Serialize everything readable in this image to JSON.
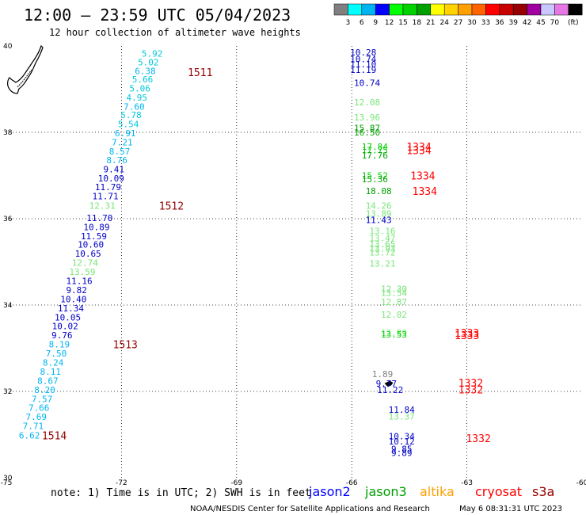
{
  "header": {
    "title": "12:00 — 23:59 UTC 05/04/2023",
    "subtitle": "12 hour collection of altimeter wave heights"
  },
  "colorbar": {
    "unit": "(ft)",
    "labels": [
      "3",
      "6",
      "9",
      "12",
      "15",
      "18",
      "21",
      "24",
      "27",
      "30",
      "33",
      "36",
      "39",
      "42",
      "45",
      "70"
    ],
    "colors": [
      "#7f7f7f",
      "#00ffff",
      "#00b4f0",
      "#0000ff",
      "#00ff00",
      "#00d200",
      "#00a000",
      "#ffff00",
      "#ffd200",
      "#ffa000",
      "#ff6400",
      "#ff0000",
      "#c80000",
      "#960000",
      "#a000a0",
      "#c8c8ff",
      "#e678e6",
      "#000000"
    ]
  },
  "footer": {
    "note": "note: 1) Time is in UTC; 2) SWH is in feet",
    "credit": "NOAA/NESDIS Center for Satellite Applications and Research",
    "timestamp": "May  6 08:31:31 UTC 2023"
  },
  "legend": [
    {
      "name": "jason2",
      "color": "#0000ff"
    },
    {
      "name": "jason3",
      "color": "#00a000"
    },
    {
      "name": "altika",
      "color": "#ffa000"
    },
    {
      "name": "cryosat",
      "color": "#ff0000"
    },
    {
      "name": "s3a",
      "color": "#960000"
    }
  ],
  "chart_data": {
    "type": "scatter",
    "xlim": [
      -75,
      -60
    ],
    "ylim": [
      30,
      40
    ],
    "xticks": [
      "-75",
      "-72",
      "-69",
      "-66",
      "-63",
      "-60"
    ],
    "yticks": [
      "30",
      "32",
      "34",
      "36",
      "38",
      "40"
    ],
    "grid": true,
    "points": [
      {
        "lon": -71.2,
        "lat": 39.83,
        "label": "5.92",
        "color": "#00c8dc"
      },
      {
        "lon": -71.3,
        "lat": 39.62,
        "label": "5.02",
        "color": "#00c8dc"
      },
      {
        "lon": -71.38,
        "lat": 39.42,
        "label": "6.38",
        "color": "#00b4f0"
      },
      {
        "lon": -71.45,
        "lat": 39.23,
        "label": "5.66",
        "color": "#00c8dc"
      },
      {
        "lon": -71.52,
        "lat": 39.02,
        "label": "5.06",
        "color": "#00c8dc"
      },
      {
        "lon": -71.6,
        "lat": 38.81,
        "label": "4.95",
        "color": "#00c8dc"
      },
      {
        "lon": -71.67,
        "lat": 38.6,
        "label": "7.60",
        "color": "#00b4f0"
      },
      {
        "lon": -71.75,
        "lat": 38.4,
        "label": "5.78",
        "color": "#00c8dc"
      },
      {
        "lon": -71.82,
        "lat": 38.19,
        "label": "5.54",
        "color": "#00c8dc"
      },
      {
        "lon": -71.9,
        "lat": 37.98,
        "label": "6.91",
        "color": "#00b4f0"
      },
      {
        "lon": -71.98,
        "lat": 37.77,
        "label": "7.21",
        "color": "#00b4f0"
      },
      {
        "lon": -72.05,
        "lat": 37.56,
        "label": "8.57",
        "color": "#00b4f0"
      },
      {
        "lon": -72.12,
        "lat": 37.36,
        "label": "8.76",
        "color": "#00b4f0"
      },
      {
        "lon": -72.2,
        "lat": 37.15,
        "label": "9.41",
        "color": "#0000c8"
      },
      {
        "lon": -72.27,
        "lat": 36.94,
        "label": "10.09",
        "color": "#0000c8"
      },
      {
        "lon": -72.35,
        "lat": 36.73,
        "label": "11.79",
        "color": "#0000c8"
      },
      {
        "lon": -72.42,
        "lat": 36.52,
        "label": "11.71",
        "color": "#0000c8"
      },
      {
        "lon": -72.5,
        "lat": 36.3,
        "label": "12.31",
        "color": "#78e678"
      },
      {
        "lon": -72.57,
        "lat": 36.02,
        "label": "11.70",
        "color": "#0000c8"
      },
      {
        "lon": -72.65,
        "lat": 35.81,
        "label": "10.89",
        "color": "#0000c8"
      },
      {
        "lon": -72.72,
        "lat": 35.6,
        "label": "11.59",
        "color": "#0000c8"
      },
      {
        "lon": -72.8,
        "lat": 35.4,
        "label": "10.60",
        "color": "#0000c8"
      },
      {
        "lon": -72.87,
        "lat": 35.19,
        "label": "10.65",
        "color": "#0000c8"
      },
      {
        "lon": -72.95,
        "lat": 34.98,
        "label": "12.74",
        "color": "#78e678"
      },
      {
        "lon": -73.02,
        "lat": 34.77,
        "label": "13.59",
        "color": "#78e678"
      },
      {
        "lon": -73.1,
        "lat": 34.56,
        "label": "11.16",
        "color": "#0000c8"
      },
      {
        "lon": -73.17,
        "lat": 34.35,
        "label": "9.82",
        "color": "#0000c8"
      },
      {
        "lon": -73.25,
        "lat": 34.14,
        "label": "10.40",
        "color": "#0000c8"
      },
      {
        "lon": -73.32,
        "lat": 33.93,
        "label": "11.34",
        "color": "#0000c8"
      },
      {
        "lon": -73.4,
        "lat": 33.72,
        "label": "10.05",
        "color": "#0000c8"
      },
      {
        "lon": -73.47,
        "lat": 33.51,
        "label": "10.02",
        "color": "#0000c8"
      },
      {
        "lon": -73.55,
        "lat": 33.3,
        "label": "9.76",
        "color": "#0000c8"
      },
      {
        "lon": -73.62,
        "lat": 33.09,
        "label": "8.19",
        "color": "#00b4f0"
      },
      {
        "lon": -73.7,
        "lat": 32.88,
        "label": "7.50",
        "color": "#00b4f0"
      },
      {
        "lon": -73.78,
        "lat": 32.67,
        "label": "8.24",
        "color": "#00b4f0"
      },
      {
        "lon": -73.85,
        "lat": 32.46,
        "label": "8.11",
        "color": "#00b4f0"
      },
      {
        "lon": -73.92,
        "lat": 32.25,
        "label": "8.67",
        "color": "#00b4f0"
      },
      {
        "lon": -74.0,
        "lat": 32.04,
        "label": "8.20",
        "color": "#00b4f0"
      },
      {
        "lon": -74.07,
        "lat": 31.83,
        "label": "7.57",
        "color": "#00b4f0"
      },
      {
        "lon": -74.15,
        "lat": 31.62,
        "label": "7.66",
        "color": "#00b4f0"
      },
      {
        "lon": -74.22,
        "lat": 31.41,
        "label": "7.69",
        "color": "#00b4f0"
      },
      {
        "lon": -74.3,
        "lat": 31.2,
        "label": "7.71",
        "color": "#00b4f0"
      },
      {
        "lon": -74.4,
        "lat": 30.98,
        "label": "6.62",
        "color": "#00b4f0"
      },
      {
        "lon": -65.7,
        "lat": 39.85,
        "label": "10.28",
        "color": "#0000c8"
      },
      {
        "lon": -65.7,
        "lat": 39.7,
        "label": "10.74",
        "color": "#0000c8"
      },
      {
        "lon": -65.7,
        "lat": 39.58,
        "label": "11.10",
        "color": "#0000c8"
      },
      {
        "lon": -65.7,
        "lat": 39.45,
        "label": "11.19",
        "color": "#0000c8"
      },
      {
        "lon": -65.6,
        "lat": 39.15,
        "label": "10.74",
        "color": "#0000c8"
      },
      {
        "lon": -65.6,
        "lat": 38.7,
        "label": "12.08",
        "color": "#78e678"
      },
      {
        "lon": -65.6,
        "lat": 38.35,
        "label": "13.96",
        "color": "#78e678"
      },
      {
        "lon": -65.6,
        "lat": 38.1,
        "label": "15.87",
        "color": "#00a000"
      },
      {
        "lon": -65.6,
        "lat": 38.0,
        "label": "16.50",
        "color": "#00a000"
      },
      {
        "lon": -65.4,
        "lat": 37.67,
        "label": "17.84",
        "color": "#00d200"
      },
      {
        "lon": -65.4,
        "lat": 37.59,
        "label": "17.75",
        "color": "#00d200"
      },
      {
        "lon": -65.4,
        "lat": 37.47,
        "label": "17.76",
        "color": "#00a000"
      },
      {
        "lon": -65.4,
        "lat": 37.0,
        "label": "15.52",
        "color": "#00d200"
      },
      {
        "lon": -65.4,
        "lat": 36.92,
        "label": "15.36",
        "color": "#00a000"
      },
      {
        "lon": -65.3,
        "lat": 36.64,
        "label": "18.08",
        "color": "#00a000"
      },
      {
        "lon": -65.3,
        "lat": 36.3,
        "label": "14.26",
        "color": "#78e678"
      },
      {
        "lon": -65.3,
        "lat": 36.12,
        "label": "13.89",
        "color": "#78e678"
      },
      {
        "lon": -65.3,
        "lat": 35.97,
        "label": "11.43",
        "color": "#0000c8"
      },
      {
        "lon": -65.2,
        "lat": 35.72,
        "label": "13.16",
        "color": "#78e678"
      },
      {
        "lon": -65.2,
        "lat": 35.55,
        "label": "13.47",
        "color": "#78e678"
      },
      {
        "lon": -65.2,
        "lat": 35.41,
        "label": "13.65",
        "color": "#78e678"
      },
      {
        "lon": -65.2,
        "lat": 35.31,
        "label": "13.93",
        "color": "#78e678"
      },
      {
        "lon": -65.2,
        "lat": 35.22,
        "label": "13.72",
        "color": "#78e678"
      },
      {
        "lon": -65.2,
        "lat": 34.96,
        "label": "13.21",
        "color": "#78e678"
      },
      {
        "lon": -64.9,
        "lat": 34.38,
        "label": "12.30",
        "color": "#78e678"
      },
      {
        "lon": -64.9,
        "lat": 34.28,
        "label": "13.54",
        "color": "#78e678"
      },
      {
        "lon": -64.9,
        "lat": 34.07,
        "label": "12.87",
        "color": "#78e678"
      },
      {
        "lon": -64.9,
        "lat": 33.78,
        "label": "12.02",
        "color": "#78e678"
      },
      {
        "lon": -64.9,
        "lat": 33.36,
        "label": "12.89",
        "color": "#78e678"
      },
      {
        "lon": -64.9,
        "lat": 33.32,
        "label": "13.53",
        "color": "#00d200"
      },
      {
        "lon": -65.2,
        "lat": 32.4,
        "label": "1.89",
        "color": "#7f7f7f"
      },
      {
        "lon": -65.1,
        "lat": 32.18,
        "label": "9.77",
        "color": "#0000c8"
      },
      {
        "lon": -65.0,
        "lat": 32.04,
        "label": "11.22",
        "color": "#0000c8"
      },
      {
        "lon": -64.7,
        "lat": 31.58,
        "label": "11.84",
        "color": "#0000c8"
      },
      {
        "lon": -64.7,
        "lat": 31.42,
        "label": "13.37",
        "color": "#78e678"
      },
      {
        "lon": -64.7,
        "lat": 30.96,
        "label": "10.34",
        "color": "#0000c8"
      },
      {
        "lon": -64.7,
        "lat": 30.84,
        "label": "10.12",
        "color": "#0000c8"
      },
      {
        "lon": -64.7,
        "lat": 30.67,
        "label": "9.85",
        "color": "#0000c8"
      },
      {
        "lon": -64.7,
        "lat": 30.58,
        "label": "9.89",
        "color": "#0000c8"
      }
    ],
    "passes": [
      {
        "lon": -69.95,
        "lat": 39.39,
        "label": "1511",
        "color": "#960000"
      },
      {
        "lon": -70.7,
        "lat": 36.3,
        "label": "1512",
        "color": "#960000"
      },
      {
        "lon": -71.9,
        "lat": 33.09,
        "label": "1513",
        "color": "#960000"
      },
      {
        "lon": -73.75,
        "lat": 30.98,
        "label": "1514",
        "color": "#960000"
      },
      {
        "lon": -64.25,
        "lat": 37.67,
        "label": "1334",
        "color": "#ff0000"
      },
      {
        "lon": -64.25,
        "lat": 37.59,
        "label": "1334",
        "color": "#ff0000"
      },
      {
        "lon": -64.15,
        "lat": 37.0,
        "label": "1334",
        "color": "#ff0000"
      },
      {
        "lon": -64.1,
        "lat": 36.64,
        "label": "1334",
        "color": "#ff0000"
      },
      {
        "lon": -63.0,
        "lat": 33.36,
        "label": "1333",
        "color": "#ff0000"
      },
      {
        "lon": -63.0,
        "lat": 33.3,
        "label": "1333",
        "color": "#ff0000"
      },
      {
        "lon": -62.9,
        "lat": 32.2,
        "label": "1332",
        "color": "#ff0000"
      },
      {
        "lon": -62.9,
        "lat": 32.05,
        "label": "1332",
        "color": "#ff0000"
      },
      {
        "lon": -62.7,
        "lat": 30.92,
        "label": "1332",
        "color": "#ff0000"
      }
    ]
  }
}
